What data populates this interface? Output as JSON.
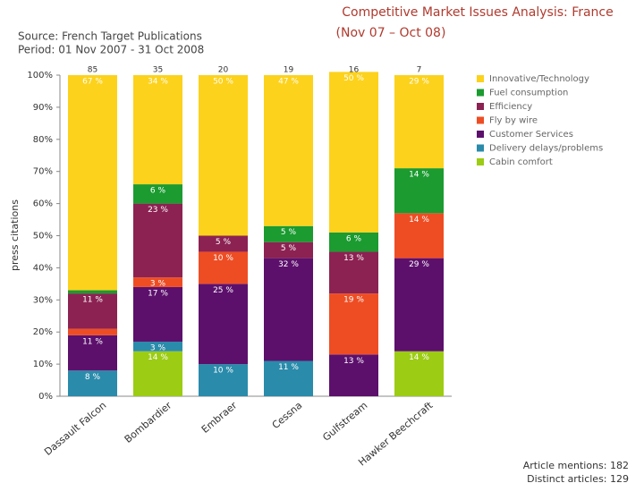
{
  "chart_data": {
    "type": "stacked_bar_percent",
    "title": "Competitive Market Issues Analysis: France",
    "subtitle": "(Nov 07 – Oct 08)",
    "source": "Source: French Target Publications",
    "period": "Period: 01 Nov 2007 - 31 Oct 2008",
    "y_label": "press citations",
    "footer": [
      "Article mentions: 182",
      "Distinct articles: 129"
    ],
    "categories": [
      "Dassault Falcon",
      "Bombardier",
      "Embraer",
      "Cessna",
      "Gulfstream",
      "Hawker Beechcraft"
    ],
    "counts": [
      85,
      35,
      20,
      19,
      16,
      7
    ],
    "ylim": [
      0,
      100
    ],
    "yticks": [
      {
        "value": 0,
        "label": "0%"
      },
      {
        "value": 10,
        "label": "10%"
      },
      {
        "value": 20,
        "label": "20%"
      },
      {
        "value": 30,
        "label": "30%"
      },
      {
        "value": 40,
        "label": "40%"
      },
      {
        "value": 50,
        "label": "50%"
      },
      {
        "value": 60,
        "label": "60%"
      },
      {
        "value": 70,
        "label": "70%"
      },
      {
        "value": 80,
        "label": "80%"
      },
      {
        "value": 90,
        "label": "90%"
      },
      {
        "value": 100,
        "label": "100%"
      }
    ],
    "series": [
      {
        "name": "Innovative/Technology",
        "color": "#fcd21c",
        "values": [
          67,
          34,
          50,
          47,
          50,
          29
        ],
        "value_labels": [
          "67 %",
          "34 %",
          "50 %",
          "47 %",
          "50 %",
          "29 %"
        ]
      },
      {
        "name": "Fuel consumption",
        "color": "#1b9b30",
        "values": [
          1,
          6,
          0,
          5,
          6,
          14
        ],
        "value_labels": [
          null,
          "6 %",
          null,
          "5 %",
          "6 %",
          "14 %"
        ]
      },
      {
        "name": "Efficiency",
        "color": "#8c2252",
        "values": [
          11,
          23,
          5,
          5,
          13,
          0
        ],
        "value_labels": [
          "11 %",
          "23 %",
          "5 %",
          "5 %",
          "13 %",
          null
        ]
      },
      {
        "name": "Fly by wire",
        "color": "#ee4d24",
        "values": [
          2,
          3,
          10,
          0,
          19,
          14
        ],
        "value_labels": [
          null,
          "3 %",
          "10 %",
          null,
          "19 %",
          "14 %"
        ]
      },
      {
        "name": "Customer Services",
        "color": "#5c106c",
        "values": [
          11,
          17,
          25,
          32,
          13,
          29
        ],
        "value_labels": [
          "11 %",
          "17 %",
          "25 %",
          "32 %",
          "13 %",
          "29 %"
        ]
      },
      {
        "name": "Delivery delays/problems",
        "color": "#2a8bab",
        "values": [
          8,
          3,
          10,
          11,
          0,
          0
        ],
        "value_labels": [
          "8 %",
          "3 %",
          "10 %",
          "11 %",
          null,
          null
        ]
      },
      {
        "name": "Cabin comfort",
        "color": "#9ccc14",
        "values": [
          0,
          14,
          0,
          0,
          0,
          14
        ],
        "value_labels": [
          null,
          "14 %",
          null,
          null,
          null,
          "14 %"
        ]
      }
    ]
  }
}
